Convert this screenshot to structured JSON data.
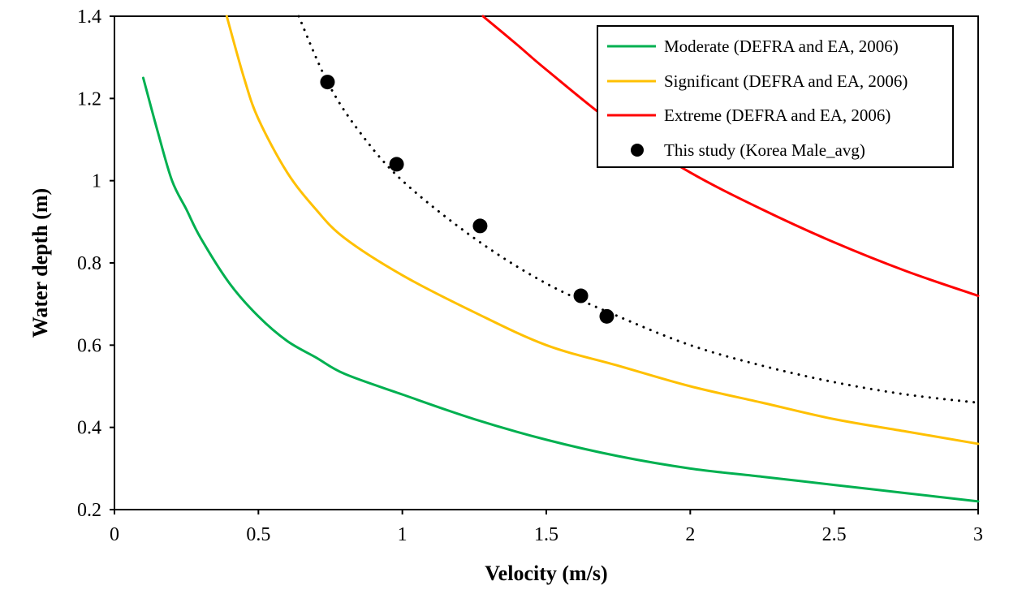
{
  "chart_data": {
    "type": "line",
    "title": "",
    "xlabel": "Velocity (m/s)",
    "ylabel": "Water depth (m)",
    "xlim": [
      0,
      3
    ],
    "ylim": [
      0.2,
      1.4
    ],
    "xticks": [
      0,
      0.5,
      1,
      1.5,
      2,
      2.5,
      3
    ],
    "xtick_labels": [
      "0",
      "0.5",
      "1",
      "1.5",
      "2",
      "2.5",
      "3"
    ],
    "yticks": [
      0.2,
      0.4,
      0.6,
      0.8,
      1,
      1.2,
      1.4
    ],
    "ytick_labels": [
      "0.2",
      "0.4",
      "0.6",
      "0.8",
      "1",
      "1.2",
      "1.4"
    ],
    "grid": false,
    "legend_position": "top-right",
    "series": [
      {
        "name": "Moderate (DEFRA and EA, 2006)",
        "kind": "curve",
        "color": "#00b050",
        "dash": "solid",
        "x": [
          0.1,
          0.15,
          0.2,
          0.25,
          0.3,
          0.4,
          0.5,
          0.6,
          0.7,
          0.8,
          1.0,
          1.25,
          1.5,
          1.75,
          2.0,
          2.25,
          2.5,
          2.75,
          3.0
        ],
        "y": [
          1.25,
          1.12,
          1.0,
          0.93,
          0.86,
          0.75,
          0.67,
          0.61,
          0.57,
          0.53,
          0.48,
          0.42,
          0.37,
          0.33,
          0.3,
          0.28,
          0.26,
          0.24,
          0.22
        ]
      },
      {
        "name": "Significant (DEFRA and EA, 2006)",
        "kind": "curve",
        "color": "#ffc000",
        "dash": "solid",
        "x": [
          0.39,
          0.45,
          0.5,
          0.6,
          0.7,
          0.8,
          1.0,
          1.25,
          1.5,
          1.75,
          2.0,
          2.25,
          2.5,
          2.75,
          3.0
        ],
        "y": [
          1.4,
          1.25,
          1.15,
          1.02,
          0.93,
          0.86,
          0.77,
          0.68,
          0.6,
          0.55,
          0.5,
          0.46,
          0.42,
          0.39,
          0.36
        ]
      },
      {
        "name": "Extreme (DEFRA and EA, 2006)",
        "kind": "curve",
        "color": "#ff0000",
        "dash": "solid",
        "x": [
          1.28,
          1.4,
          1.5,
          1.75,
          2.0,
          2.25,
          2.5,
          2.75,
          3.0
        ],
        "y": [
          1.4,
          1.33,
          1.27,
          1.13,
          1.02,
          0.93,
          0.85,
          0.78,
          0.72
        ]
      },
      {
        "name": "This study (Korea Male_avg)",
        "kind": "points",
        "color": "#000000",
        "x": [
          0.74,
          0.98,
          1.27,
          1.62,
          1.71
        ],
        "y": [
          1.24,
          1.04,
          0.89,
          0.72,
          0.67
        ]
      },
      {
        "name": "",
        "kind": "trendline",
        "color": "#000000",
        "dash": "dotted",
        "x": [
          0.64,
          0.74,
          0.85,
          1.0,
          1.25,
          1.5,
          1.75,
          2.0,
          2.25,
          2.5,
          2.75,
          3.0
        ],
        "y": [
          1.4,
          1.24,
          1.12,
          1.0,
          0.86,
          0.75,
          0.67,
          0.6,
          0.55,
          0.51,
          0.48,
          0.46
        ]
      }
    ]
  }
}
